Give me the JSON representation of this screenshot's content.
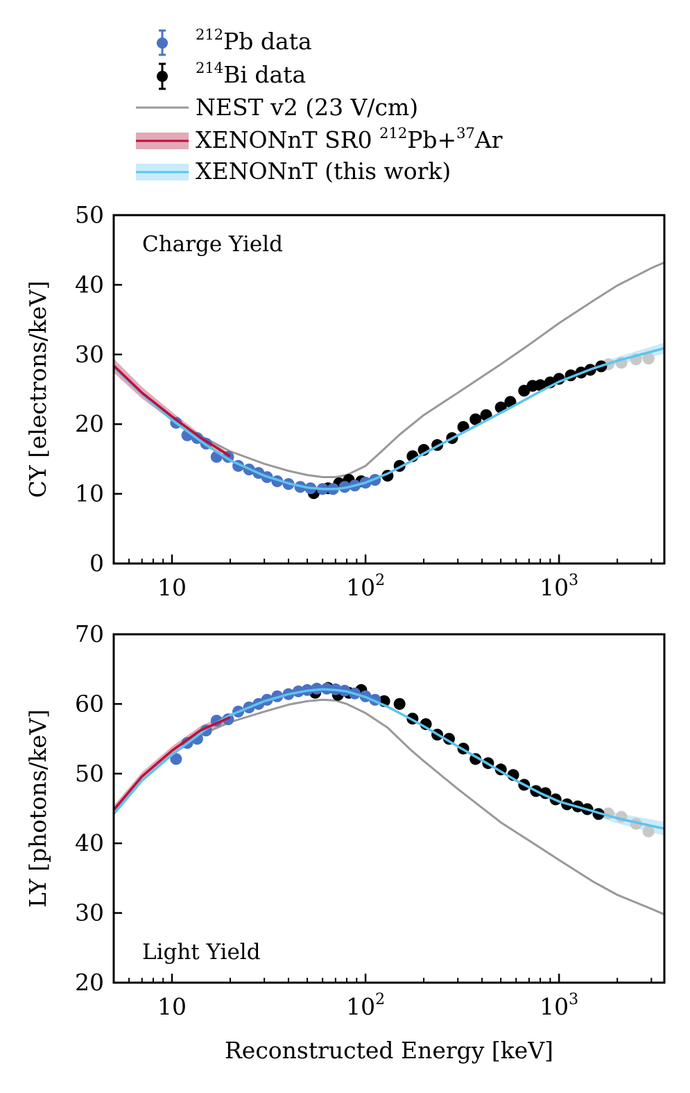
{
  "legend": {
    "items": [
      {
        "id": "pb",
        "base": "Pb data",
        "sup": "212"
      },
      {
        "id": "bi",
        "base": "Bi data",
        "sup": "214"
      },
      {
        "id": "nest",
        "text": "NEST v2 (23 V/cm)"
      },
      {
        "id": "sr0",
        "pre": "XENONnT SR0 ",
        "sup1": "212",
        "mid": "Pb+",
        "sup2": "37",
        "post": "Ar"
      },
      {
        "id": "tw",
        "text": "XENONnT (this work)"
      }
    ]
  },
  "colors": {
    "pb": "#4a72c4",
    "bi": "#000000",
    "nest": "#999999",
    "sr0": "#b8123e",
    "sr0_band": "#e3a9b7",
    "tw": "#5cc4ee",
    "tw_band": "#c9ebfa",
    "faded": "#c8c8c8"
  },
  "xaxis": {
    "label": "Reconstructed Energy [keV]",
    "ticks": [
      {
        "value": 10,
        "base": "10",
        "exp": ""
      },
      {
        "value": 100,
        "base": "10",
        "exp": "2"
      },
      {
        "value": 1000,
        "base": "10",
        "exp": "3"
      }
    ]
  },
  "chart_data": [
    {
      "type": "scatter",
      "name": "cy",
      "title": "Charge Yield",
      "xlabel": "Reconstructed Energy [keV]",
      "ylabel": "CY [electrons/keV]",
      "xscale": "log",
      "xlim": [
        5,
        3500
      ],
      "ylim": [
        0,
        50
      ],
      "yticks": [
        0,
        10,
        20,
        30,
        40,
        50
      ],
      "pb_points": [
        [
          10.5,
          20.2
        ],
        [
          12,
          18.4
        ],
        [
          13.5,
          18.0
        ],
        [
          15,
          17.2
        ],
        [
          17,
          15.3
        ],
        [
          19.5,
          15.3
        ],
        [
          22,
          14.0
        ],
        [
          25,
          13.5
        ],
        [
          28,
          13.0
        ],
        [
          31,
          12.4
        ],
        [
          35,
          11.8
        ],
        [
          40,
          11.4
        ],
        [
          46,
          11.0
        ],
        [
          52,
          10.8
        ],
        [
          60,
          10.7
        ],
        [
          68,
          10.7
        ],
        [
          78,
          11.0
        ],
        [
          88,
          11.2
        ],
        [
          100,
          11.6
        ],
        [
          112,
          12.0
        ]
      ],
      "bi_points": [
        [
          54,
          10.1
        ],
        [
          64,
          10.8
        ],
        [
          73,
          11.5
        ],
        [
          82,
          12.0
        ],
        [
          95,
          11.8
        ],
        [
          130,
          12.6
        ],
        [
          150,
          14.0
        ],
        [
          175,
          15.4
        ],
        [
          200,
          16.3
        ],
        [
          235,
          17.0
        ],
        [
          280,
          18.0
        ],
        [
          320,
          19.6
        ],
        [
          370,
          20.7
        ],
        [
          420,
          21.3
        ],
        [
          500,
          22.4
        ],
        [
          560,
          23.2
        ],
        [
          660,
          24.8
        ],
        [
          730,
          25.5
        ],
        [
          800,
          25.6
        ],
        [
          900,
          26.0
        ],
        [
          1000,
          26.5
        ],
        [
          1150,
          27.0
        ],
        [
          1300,
          27.4
        ],
        [
          1450,
          27.8
        ],
        [
          1650,
          28.3
        ]
      ],
      "faded_points": [
        [
          1800,
          28.6
        ],
        [
          2100,
          28.8
        ],
        [
          2500,
          29.3
        ],
        [
          2900,
          29.4
        ]
      ],
      "nest_curve": [
        [
          10,
          20.7
        ],
        [
          15,
          17.9
        ],
        [
          20,
          16.1
        ],
        [
          30,
          14.3
        ],
        [
          40,
          13.3
        ],
        [
          50,
          12.7
        ],
        [
          60,
          12.4
        ],
        [
          70,
          12.4
        ],
        [
          80,
          12.7
        ],
        [
          100,
          14.0
        ],
        [
          120,
          16.0
        ],
        [
          150,
          18.5
        ],
        [
          200,
          21.3
        ],
        [
          300,
          24.5
        ],
        [
          500,
          28.6
        ],
        [
          700,
          31.4
        ],
        [
          1000,
          34.5
        ],
        [
          1500,
          37.7
        ],
        [
          2000,
          39.9
        ],
        [
          3000,
          42.4
        ],
        [
          3500,
          43.2
        ]
      ],
      "sr0_curve": [
        [
          5,
          28.4
        ],
        [
          7,
          24.5
        ],
        [
          10,
          21.1
        ],
        [
          14,
          18.1
        ],
        [
          20,
          15.4
        ]
      ],
      "tw_curve": [
        [
          5,
          28.2
        ],
        [
          7,
          24.3
        ],
        [
          10,
          20.6
        ],
        [
          15,
          17.0
        ],
        [
          20,
          14.8
        ],
        [
          30,
          12.6
        ],
        [
          40,
          11.5
        ],
        [
          50,
          10.9
        ],
        [
          60,
          10.7
        ],
        [
          70,
          10.7
        ],
        [
          80,
          10.9
        ],
        [
          100,
          11.6
        ],
        [
          130,
          12.9
        ],
        [
          170,
          14.6
        ],
        [
          200,
          15.8
        ],
        [
          300,
          18.4
        ],
        [
          400,
          20.2
        ],
        [
          600,
          22.8
        ],
        [
          800,
          24.7
        ],
        [
          1000,
          26.1
        ],
        [
          1500,
          28.0
        ],
        [
          2000,
          29.1
        ],
        [
          3000,
          30.4
        ],
        [
          3500,
          30.9
        ]
      ],
      "tw_band": {
        "x": [
          1000,
          3500
        ],
        "halfwidth": [
          0.2,
          0.8
        ]
      },
      "sr0_band": {
        "x": [
          5,
          20
        ],
        "halfwidth": [
          1.0,
          0.3
        ]
      }
    },
    {
      "type": "scatter",
      "name": "ly",
      "title": "Light Yield",
      "xlabel": "Reconstructed Energy [keV]",
      "ylabel": "LY [photons/keV]",
      "xscale": "log",
      "xlim": [
        5,
        3500
      ],
      "ylim": [
        20,
        70
      ],
      "yticks": [
        20,
        30,
        40,
        50,
        60,
        70
      ],
      "pb_points": [
        [
          10.5,
          52.1
        ],
        [
          12,
          54.4
        ],
        [
          13.5,
          55.0
        ],
        [
          15,
          56.2
        ],
        [
          17,
          57.6
        ],
        [
          19.5,
          57.8
        ],
        [
          22,
          58.9
        ],
        [
          25,
          59.5
        ],
        [
          28,
          60.0
        ],
        [
          31,
          60.6
        ],
        [
          35,
          61.1
        ],
        [
          40,
          61.4
        ],
        [
          45,
          61.8
        ],
        [
          50,
          62.0
        ],
        [
          56,
          62.2
        ],
        [
          63,
          62.2
        ],
        [
          70,
          62.1
        ],
        [
          78,
          61.9
        ],
        [
          88,
          61.5
        ],
        [
          100,
          61.1
        ],
        [
          112,
          60.6
        ]
      ],
      "bi_points": [
        [
          55,
          61.6
        ],
        [
          64,
          62.3
        ],
        [
          72,
          61.3
        ],
        [
          82,
          61.6
        ],
        [
          95,
          62.0
        ],
        [
          125,
          60.4
        ],
        [
          150,
          60.0
        ],
        [
          175,
          57.9
        ],
        [
          205,
          57.1
        ],
        [
          235,
          55.6
        ],
        [
          270,
          55.0
        ],
        [
          320,
          53.6
        ],
        [
          370,
          52.1
        ],
        [
          430,
          51.5
        ],
        [
          500,
          50.6
        ],
        [
          580,
          49.8
        ],
        [
          660,
          48.4
        ],
        [
          760,
          47.5
        ],
        [
          850,
          47.2
        ],
        [
          960,
          46.3
        ],
        [
          1100,
          45.6
        ],
        [
          1250,
          45.3
        ],
        [
          1400,
          44.9
        ],
        [
          1600,
          44.2
        ]
      ],
      "faded_points": [
        [
          1800,
          44.3
        ],
        [
          2100,
          43.8
        ],
        [
          2500,
          42.8
        ],
        [
          2900,
          41.7
        ]
      ],
      "nest_curve": [
        [
          5,
          44.4
        ],
        [
          7,
          49.0
        ],
        [
          10,
          52.8
        ],
        [
          15,
          55.9
        ],
        [
          20,
          57.4
        ],
        [
          30,
          58.9
        ],
        [
          40,
          59.9
        ],
        [
          50,
          60.4
        ],
        [
          60,
          60.6
        ],
        [
          70,
          60.5
        ],
        [
          80,
          60.0
        ],
        [
          100,
          58.7
        ],
        [
          130,
          56.6
        ],
        [
          170,
          53.5
        ],
        [
          200,
          51.8
        ],
        [
          300,
          47.8
        ],
        [
          500,
          43.0
        ],
        [
          700,
          40.4
        ],
        [
          1000,
          37.6
        ],
        [
          1500,
          34.5
        ],
        [
          2000,
          32.6
        ],
        [
          3000,
          30.6
        ],
        [
          3500,
          29.8
        ]
      ],
      "sr0_curve": [
        [
          5,
          44.8
        ],
        [
          7,
          49.6
        ],
        [
          10,
          53.3
        ],
        [
          14,
          56.2
        ],
        [
          20,
          58.1
        ]
      ],
      "tw_curve": [
        [
          5,
          44.2
        ],
        [
          7,
          49.0
        ],
        [
          10,
          52.7
        ],
        [
          15,
          56.4
        ],
        [
          20,
          58.4
        ],
        [
          30,
          60.4
        ],
        [
          40,
          61.4
        ],
        [
          50,
          61.9
        ],
        [
          60,
          62.1
        ],
        [
          70,
          62.0
        ],
        [
          80,
          61.8
        ],
        [
          100,
          61.0
        ],
        [
          130,
          59.6
        ],
        [
          170,
          57.9
        ],
        [
          200,
          56.8
        ],
        [
          300,
          53.9
        ],
        [
          400,
          51.9
        ],
        [
          600,
          49.0
        ],
        [
          800,
          47.2
        ],
        [
          1000,
          46.0
        ],
        [
          1500,
          44.6
        ],
        [
          2000,
          43.6
        ],
        [
          3000,
          42.5
        ],
        [
          3500,
          42.1
        ]
      ],
      "tw_band": {
        "x": [
          800,
          3500
        ],
        "halfwidth": [
          0.3,
          1.0
        ]
      },
      "sr0_band": {
        "x": [
          5,
          20
        ],
        "halfwidth": [
          0.6,
          0.6
        ]
      }
    }
  ]
}
